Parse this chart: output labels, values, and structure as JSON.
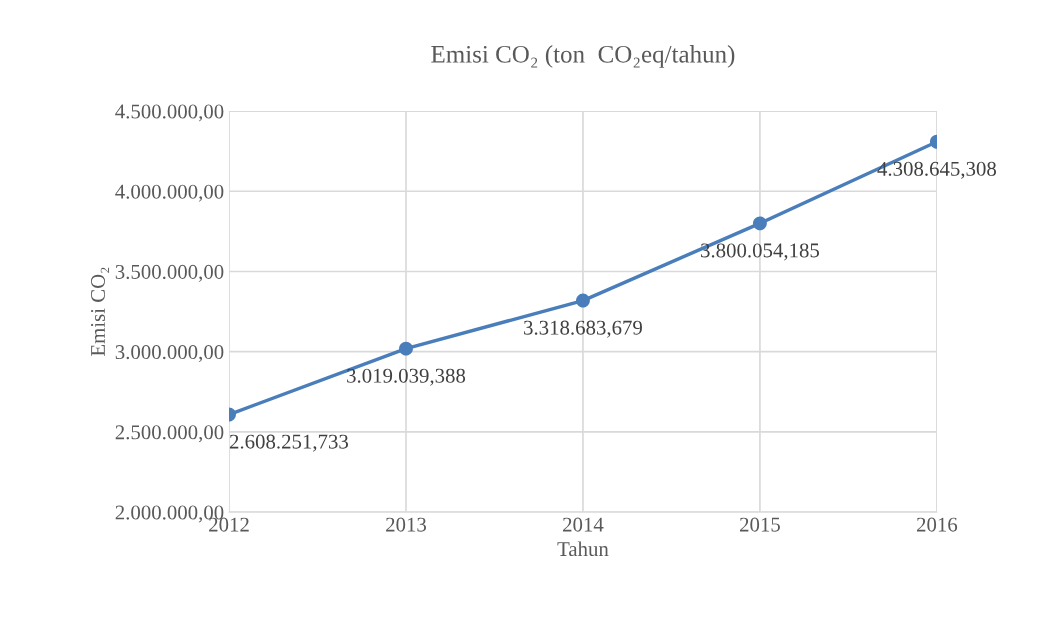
{
  "chart_data": {
    "type": "line",
    "title": "Emisi CO₂ (ton  CO₂eq/tahun)",
    "xlabel": "Tahun",
    "ylabel": "Emisi CO₂",
    "x": [
      2012,
      2013,
      2014,
      2015,
      2016
    ],
    "series": [
      {
        "color": "#4a7ebb",
        "values": [
          2608251.733,
          3019039.388,
          3318683.679,
          3800054.185,
          4308645.308
        ],
        "value_labels": [
          "2.608.251,733",
          "3.019.039,388",
          "3.318.683,679",
          "3.800.054,185",
          "4.308.645,308"
        ]
      }
    ],
    "xlim": [
      2012,
      2016
    ],
    "xticks": [
      2012,
      2013,
      2014,
      2015,
      2016
    ],
    "ylim": [
      2000000,
      4500000
    ],
    "yticks": [
      {
        "value": 2000000,
        "label": "2.000.000,00"
      },
      {
        "value": 2500000,
        "label": "2.500.000,00"
      },
      {
        "value": 3000000,
        "label": "3.000.000,00"
      },
      {
        "value": 3500000,
        "label": "3.500.000,00"
      },
      {
        "value": 4000000,
        "label": "4.000.000,00"
      },
      {
        "value": 4500000,
        "label": "4.500.000,00"
      }
    ],
    "grid": true,
    "marker": "circle",
    "line_style": "solid"
  }
}
